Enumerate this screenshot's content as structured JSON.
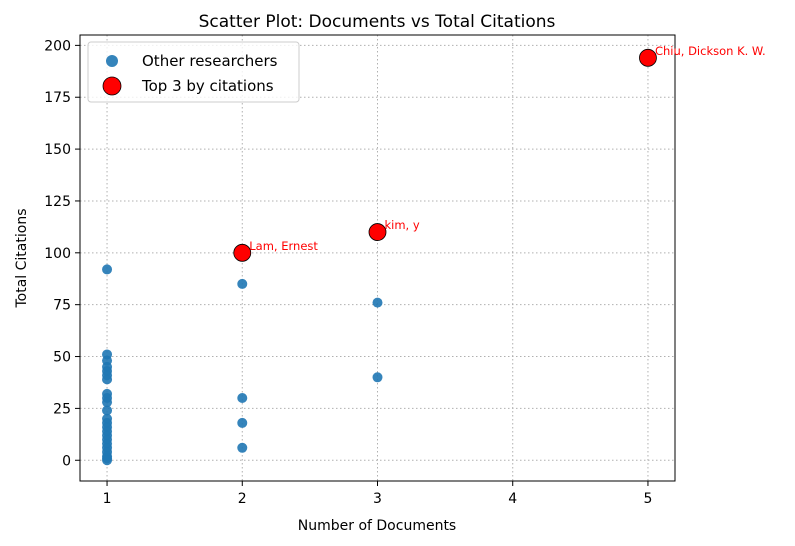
{
  "chart_data": {
    "type": "scatter",
    "title": "Scatter Plot: Documents vs Total Citations",
    "xlabel": "Number of Documents",
    "ylabel": "Total Citations",
    "xlim": [
      0.8,
      5.2
    ],
    "ylim": [
      -10,
      205
    ],
    "xticks": [
      "1",
      "2",
      "3",
      "4",
      "5"
    ],
    "yticks": [
      "0",
      "25",
      "50",
      "75",
      "100",
      "125",
      "150",
      "175",
      "200"
    ],
    "grid": true,
    "legend_position": "top-left",
    "legend": [
      "Other researchers",
      "Top 3 by citations"
    ],
    "colors": {
      "others": "#1f77b4",
      "top": "#ff0000",
      "annotation": "#ff0000"
    },
    "series": [
      {
        "name": "Other researchers",
        "points": [
          [
            1,
            92
          ],
          [
            1,
            51
          ],
          [
            1,
            48
          ],
          [
            1,
            45
          ],
          [
            1,
            43
          ],
          [
            1,
            41
          ],
          [
            1,
            39
          ],
          [
            1,
            32
          ],
          [
            1,
            30
          ],
          [
            1,
            28
          ],
          [
            1,
            24
          ],
          [
            1,
            20
          ],
          [
            1,
            18
          ],
          [
            1,
            16
          ],
          [
            1,
            14
          ],
          [
            1,
            12
          ],
          [
            1,
            10
          ],
          [
            1,
            8
          ],
          [
            1,
            6
          ],
          [
            1,
            4
          ],
          [
            1,
            2
          ],
          [
            1,
            1
          ],
          [
            1,
            0
          ],
          [
            2,
            85
          ],
          [
            2,
            30
          ],
          [
            2,
            18
          ],
          [
            2,
            6
          ],
          [
            3,
            76
          ],
          [
            3,
            40
          ]
        ]
      },
      {
        "name": "Top 3 by citations",
        "points": [
          {
            "x": 5,
            "y": 194,
            "label": "Chiu, Dickson K. W."
          },
          {
            "x": 3,
            "y": 110,
            "label": "kim, y"
          },
          {
            "x": 2,
            "y": 100,
            "label": "Lam, Ernest"
          }
        ]
      }
    ]
  }
}
